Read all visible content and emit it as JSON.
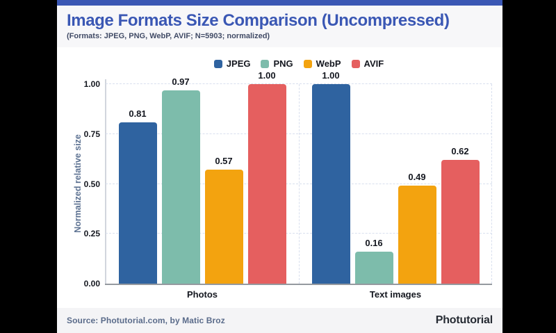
{
  "frame": {
    "background": "#000000"
  },
  "header": {
    "title": "Image Formats Size Comparison (Uncompressed)",
    "subtitle": "(Formats: JPEG, PNG, WebP, AVIF; N=5903; normalized)",
    "accent_color": "#3a57b4",
    "title_color": "#3a57b4"
  },
  "chart_data": {
    "type": "bar",
    "title": "Image Formats Size Comparison (Uncompressed)",
    "categories": [
      "Photos",
      "Text images"
    ],
    "series": [
      {
        "name": "JPEG",
        "color": "#2f63a0",
        "values": [
          0.81,
          1.0
        ]
      },
      {
        "name": "PNG",
        "color": "#7dbcab",
        "values": [
          0.97,
          0.16
        ]
      },
      {
        "name": "WebP",
        "color": "#f3a30f",
        "values": [
          0.57,
          0.49
        ]
      },
      {
        "name": "AVIF",
        "color": "#e55f5f",
        "values": [
          1.0,
          0.62
        ]
      }
    ],
    "value_labels": [
      [
        "0.81",
        "0.97",
        "0.57",
        "1.00"
      ],
      [
        "1.00",
        "0.16",
        "0.49",
        "0.62"
      ]
    ],
    "xlabel": "",
    "ylabel": "Normalized relative size",
    "ylim": [
      0,
      1
    ],
    "yticks": [
      0,
      0.25,
      0.5,
      0.75,
      1
    ],
    "ytick_labels": [
      "0.00",
      "0.25",
      "0.50",
      "0.75",
      "1.00"
    ],
    "grid": {
      "horizontal": "dashed",
      "vertical": "dashed at category boundaries"
    },
    "legend_position": "top-center"
  },
  "footer": {
    "source": "Source: Photutorial.com, by Matic Broz",
    "logo": "Photutorial"
  }
}
